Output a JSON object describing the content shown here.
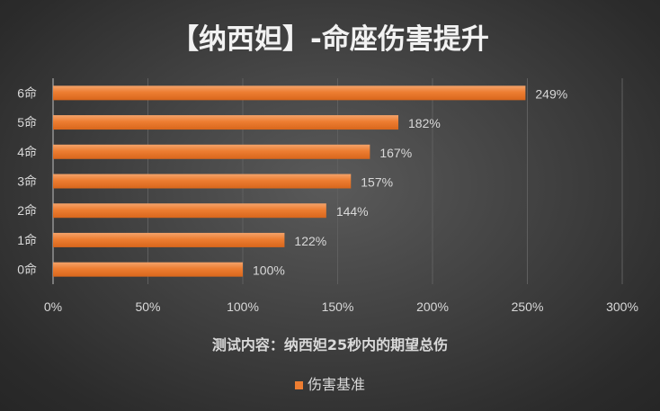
{
  "chart_data": {
    "type": "bar",
    "orientation": "horizontal",
    "title": "【纳西妲】-命座伤害提升",
    "xlabel": "测试内容：纳西妲25秒内的期望总伤",
    "ylabel": "",
    "categories": [
      "0命",
      "1命",
      "2命",
      "3命",
      "4命",
      "5命",
      "6命"
    ],
    "series": [
      {
        "name": "伤害基准",
        "values": [
          100,
          122,
          144,
          157,
          167,
          182,
          249
        ],
        "color": "#ed7d31"
      }
    ],
    "data_labels": [
      "100%",
      "122%",
      "144%",
      "157%",
      "167%",
      "182%",
      "249%"
    ],
    "xlim": [
      0,
      300
    ],
    "xticks": [
      0,
      50,
      100,
      150,
      200,
      250,
      300
    ],
    "xtick_labels": [
      "0%",
      "50%",
      "100%",
      "150%",
      "200%",
      "250%",
      "300%"
    ],
    "grid": "vertical",
    "legend": "bottom"
  }
}
